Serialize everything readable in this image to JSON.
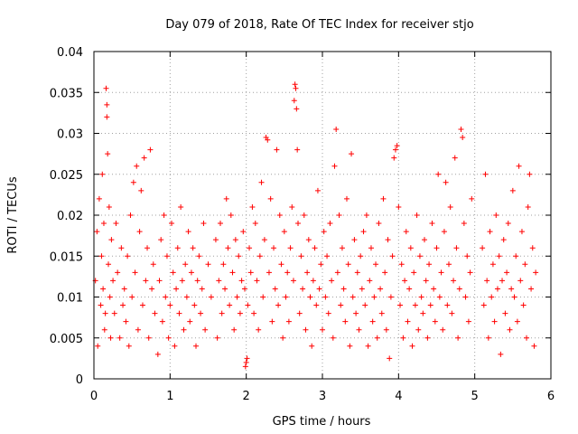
{
  "chart_data": {
    "type": "scatter",
    "title": "Day 079 of 2018, Rate Of TEC Index for receiver stjo",
    "xlabel": "GPS time / hours",
    "ylabel": "ROTI / TECUs",
    "xlim": [
      0,
      6
    ],
    "ylim": [
      0,
      0.04
    ],
    "x_ticks": [
      0,
      1,
      2,
      3,
      4,
      5,
      6
    ],
    "x_tick_labels": [
      "0",
      "1",
      "2",
      "3",
      "4",
      "5",
      "6"
    ],
    "y_ticks": [
      0,
      0.005,
      0.01,
      0.015,
      0.02,
      0.025,
      0.03,
      0.035,
      0.04
    ],
    "y_tick_labels": [
      "0",
      "0.005",
      "0.01",
      "0.015",
      "0.02",
      "0.025",
      "0.03",
      "0.035",
      "0.04"
    ],
    "grid": true,
    "marker": "+",
    "marker_color": "#ff0000",
    "series": [
      {
        "name": "ROTI",
        "points": [
          [
            0.02,
            0.012
          ],
          [
            0.04,
            0.018
          ],
          [
            0.05,
            0.004
          ],
          [
            0.07,
            0.022
          ],
          [
            0.09,
            0.009
          ],
          [
            0.1,
            0.015
          ],
          [
            0.11,
            0.025
          ],
          [
            0.12,
            0.011
          ],
          [
            0.13,
            0.019
          ],
          [
            0.14,
            0.006
          ],
          [
            0.15,
            0.008
          ],
          [
            0.16,
            0.0355
          ],
          [
            0.17,
            0.0335
          ],
          [
            0.17,
            0.032
          ],
          [
            0.18,
            0.0275
          ],
          [
            0.19,
            0.014
          ],
          [
            0.2,
            0.021
          ],
          [
            0.21,
            0.01
          ],
          [
            0.22,
            0.005
          ],
          [
            0.23,
            0.017
          ],
          [
            0.25,
            0.012
          ],
          [
            0.27,
            0.008
          ],
          [
            0.29,
            0.019
          ],
          [
            0.31,
            0.013
          ],
          [
            0.34,
            0.005
          ],
          [
            0.36,
            0.016
          ],
          [
            0.38,
            0.009
          ],
          [
            0.4,
            0.011
          ],
          [
            0.42,
            0.007
          ],
          [
            0.44,
            0.015
          ],
          [
            0.46,
            0.004
          ],
          [
            0.48,
            0.02
          ],
          [
            0.5,
            0.01
          ],
          [
            0.52,
            0.024
          ],
          [
            0.54,
            0.013
          ],
          [
            0.56,
            0.026
          ],
          [
            0.58,
            0.006
          ],
          [
            0.6,
            0.018
          ],
          [
            0.62,
            0.023
          ],
          [
            0.64,
            0.009
          ],
          [
            0.66,
            0.027
          ],
          [
            0.68,
            0.012
          ],
          [
            0.7,
            0.016
          ],
          [
            0.72,
            0.005
          ],
          [
            0.74,
            0.028
          ],
          [
            0.76,
            0.011
          ],
          [
            0.78,
            0.014
          ],
          [
            0.8,
            0.008
          ],
          [
            0.84,
            0.003
          ],
          [
            0.86,
            0.012
          ],
          [
            0.88,
            0.017
          ],
          [
            0.9,
            0.007
          ],
          [
            0.92,
            0.02
          ],
          [
            0.94,
            0.01
          ],
          [
            0.96,
            0.015
          ],
          [
            0.98,
            0.005
          ],
          [
            1.0,
            0.009
          ],
          [
            1.02,
            0.019
          ],
          [
            1.04,
            0.013
          ],
          [
            1.06,
            0.004
          ],
          [
            1.08,
            0.011
          ],
          [
            1.1,
            0.016
          ],
          [
            1.12,
            0.008
          ],
          [
            1.14,
            0.021
          ],
          [
            1.16,
            0.012
          ],
          [
            1.18,
            0.006
          ],
          [
            1.2,
            0.014
          ],
          [
            1.22,
            0.01
          ],
          [
            1.24,
            0.018
          ],
          [
            1.26,
            0.007
          ],
          [
            1.28,
            0.013
          ],
          [
            1.3,
            0.016
          ],
          [
            1.32,
            0.009
          ],
          [
            1.34,
            0.004
          ],
          [
            1.36,
            0.012
          ],
          [
            1.38,
            0.015
          ],
          [
            1.4,
            0.008
          ],
          [
            1.42,
            0.011
          ],
          [
            1.44,
            0.019
          ],
          [
            1.46,
            0.006
          ],
          [
            1.5,
            0.014
          ],
          [
            1.54,
            0.01
          ],
          [
            1.6,
            0.017
          ],
          [
            1.62,
            0.005
          ],
          [
            1.64,
            0.012
          ],
          [
            1.66,
            0.019
          ],
          [
            1.68,
            0.008
          ],
          [
            1.7,
            0.014
          ],
          [
            1.72,
            0.011
          ],
          [
            1.74,
            0.022
          ],
          [
            1.76,
            0.016
          ],
          [
            1.78,
            0.009
          ],
          [
            1.8,
            0.02
          ],
          [
            1.82,
            0.013
          ],
          [
            1.84,
            0.006
          ],
          [
            1.86,
            0.017
          ],
          [
            1.88,
            0.01
          ],
          [
            1.9,
            0.015
          ],
          [
            1.92,
            0.008
          ],
          [
            1.94,
            0.012
          ],
          [
            1.96,
            0.018
          ],
          [
            1.98,
            0.011
          ],
          [
            1.99,
            0.0015
          ],
          [
            2.0,
            0.002
          ],
          [
            2.01,
            0.0025
          ],
          [
            2.02,
            0.009
          ],
          [
            2.04,
            0.016
          ],
          [
            2.06,
            0.013
          ],
          [
            2.08,
            0.021
          ],
          [
            2.1,
            0.008
          ],
          [
            2.12,
            0.019
          ],
          [
            2.14,
            0.012
          ],
          [
            2.16,
            0.006
          ],
          [
            2.18,
            0.015
          ],
          [
            2.2,
            0.024
          ],
          [
            2.22,
            0.01
          ],
          [
            2.24,
            0.017
          ],
          [
            2.26,
            0.0295
          ],
          [
            2.28,
            0.0292
          ],
          [
            2.3,
            0.013
          ],
          [
            2.32,
            0.022
          ],
          [
            2.34,
            0.007
          ],
          [
            2.36,
            0.016
          ],
          [
            2.38,
            0.011
          ],
          [
            2.4,
            0.028
          ],
          [
            2.42,
            0.009
          ],
          [
            2.44,
            0.02
          ],
          [
            2.46,
            0.014
          ],
          [
            2.48,
            0.005
          ],
          [
            2.5,
            0.018
          ],
          [
            2.52,
            0.01
          ],
          [
            2.54,
            0.013
          ],
          [
            2.56,
            0.007
          ],
          [
            2.58,
            0.016
          ],
          [
            2.6,
            0.021
          ],
          [
            2.62,
            0.012
          ],
          [
            2.63,
            0.034
          ],
          [
            2.64,
            0.036
          ],
          [
            2.65,
            0.0355
          ],
          [
            2.66,
            0.033
          ],
          [
            2.67,
            0.028
          ],
          [
            2.68,
            0.019
          ],
          [
            2.7,
            0.008
          ],
          [
            2.72,
            0.015
          ],
          [
            2.74,
            0.011
          ],
          [
            2.76,
            0.02
          ],
          [
            2.78,
            0.006
          ],
          [
            2.8,
            0.013
          ],
          [
            2.82,
            0.017
          ],
          [
            2.84,
            0.01
          ],
          [
            2.86,
            0.004
          ],
          [
            2.88,
            0.012
          ],
          [
            2.9,
            0.016
          ],
          [
            2.92,
            0.009
          ],
          [
            2.94,
            0.023
          ],
          [
            2.96,
            0.011
          ],
          [
            2.98,
            0.014
          ],
          [
            3.0,
            0.006
          ],
          [
            3.02,
            0.018
          ],
          [
            3.04,
            0.01
          ],
          [
            3.06,
            0.015
          ],
          [
            3.08,
            0.008
          ],
          [
            3.1,
            0.019
          ],
          [
            3.12,
            0.012
          ],
          [
            3.14,
            0.005
          ],
          [
            3.16,
            0.026
          ],
          [
            3.18,
            0.0305
          ],
          [
            3.2,
            0.013
          ],
          [
            3.22,
            0.02
          ],
          [
            3.24,
            0.009
          ],
          [
            3.26,
            0.016
          ],
          [
            3.28,
            0.011
          ],
          [
            3.3,
            0.007
          ],
          [
            3.32,
            0.022
          ],
          [
            3.34,
            0.014
          ],
          [
            3.36,
            0.004
          ],
          [
            3.38,
            0.0275
          ],
          [
            3.4,
            0.01
          ],
          [
            3.42,
            0.017
          ],
          [
            3.44,
            0.008
          ],
          [
            3.46,
            0.013
          ],
          [
            3.48,
            0.006
          ],
          [
            3.5,
            0.015
          ],
          [
            3.52,
            0.011
          ],
          [
            3.54,
            0.018
          ],
          [
            3.56,
            0.009
          ],
          [
            3.58,
            0.02
          ],
          [
            3.6,
            0.004
          ],
          [
            3.62,
            0.012
          ],
          [
            3.64,
            0.016
          ],
          [
            3.66,
            0.007
          ],
          [
            3.68,
            0.01
          ],
          [
            3.7,
            0.014
          ],
          [
            3.72,
            0.005
          ],
          [
            3.74,
            0.019
          ],
          [
            3.76,
            0.011
          ],
          [
            3.78,
            0.008
          ],
          [
            3.8,
            0.022
          ],
          [
            3.82,
            0.013
          ],
          [
            3.84,
            0.006
          ],
          [
            3.86,
            0.017
          ],
          [
            3.88,
            0.0025
          ],
          [
            3.9,
            0.01
          ],
          [
            3.92,
            0.015
          ],
          [
            3.94,
            0.027
          ],
          [
            3.96,
            0.028
          ],
          [
            3.98,
            0.0285
          ],
          [
            4.0,
            0.021
          ],
          [
            4.02,
            0.009
          ],
          [
            4.04,
            0.014
          ],
          [
            4.06,
            0.005
          ],
          [
            4.08,
            0.012
          ],
          [
            4.1,
            0.018
          ],
          [
            4.12,
            0.007
          ],
          [
            4.14,
            0.011
          ],
          [
            4.16,
            0.016
          ],
          [
            4.18,
            0.004
          ],
          [
            4.2,
            0.013
          ],
          [
            4.22,
            0.009
          ],
          [
            4.24,
            0.02
          ],
          [
            4.26,
            0.006
          ],
          [
            4.28,
            0.015
          ],
          [
            4.3,
            0.01
          ],
          [
            4.32,
            0.008
          ],
          [
            4.34,
            0.017
          ],
          [
            4.36,
            0.012
          ],
          [
            4.38,
            0.005
          ],
          [
            4.4,
            0.014
          ],
          [
            4.42,
            0.009
          ],
          [
            4.44,
            0.019
          ],
          [
            4.46,
            0.011
          ],
          [
            4.48,
            0.007
          ],
          [
            4.5,
            0.016
          ],
          [
            4.52,
            0.025
          ],
          [
            4.54,
            0.01
          ],
          [
            4.56,
            0.013
          ],
          [
            4.58,
            0.006
          ],
          [
            4.6,
            0.018
          ],
          [
            4.62,
            0.024
          ],
          [
            4.64,
            0.009
          ],
          [
            4.66,
            0.014
          ],
          [
            4.68,
            0.021
          ],
          [
            4.7,
            0.008
          ],
          [
            4.72,
            0.012
          ],
          [
            4.74,
            0.027
          ],
          [
            4.76,
            0.016
          ],
          [
            4.78,
            0.005
          ],
          [
            4.8,
            0.011
          ],
          [
            4.82,
            0.0305
          ],
          [
            4.84,
            0.0295
          ],
          [
            4.86,
            0.019
          ],
          [
            4.88,
            0.01
          ],
          [
            4.9,
            0.015
          ],
          [
            4.92,
            0.007
          ],
          [
            4.94,
            0.013
          ],
          [
            4.96,
            0.022
          ],
          [
            5.1,
            0.016
          ],
          [
            5.12,
            0.009
          ],
          [
            5.14,
            0.025
          ],
          [
            5.16,
            0.012
          ],
          [
            5.18,
            0.005
          ],
          [
            5.2,
            0.018
          ],
          [
            5.22,
            0.01
          ],
          [
            5.24,
            0.014
          ],
          [
            5.26,
            0.007
          ],
          [
            5.28,
            0.02
          ],
          [
            5.3,
            0.011
          ],
          [
            5.32,
            0.015
          ],
          [
            5.34,
            0.003
          ],
          [
            5.36,
            0.012
          ],
          [
            5.38,
            0.017
          ],
          [
            5.4,
            0.008
          ],
          [
            5.42,
            0.013
          ],
          [
            5.44,
            0.019
          ],
          [
            5.46,
            0.006
          ],
          [
            5.48,
            0.011
          ],
          [
            5.5,
            0.023
          ],
          [
            5.52,
            0.01
          ],
          [
            5.54,
            0.015
          ],
          [
            5.56,
            0.007
          ],
          [
            5.58,
            0.026
          ],
          [
            5.6,
            0.012
          ],
          [
            5.62,
            0.018
          ],
          [
            5.64,
            0.009
          ],
          [
            5.66,
            0.014
          ],
          [
            5.68,
            0.005
          ],
          [
            5.7,
            0.021
          ],
          [
            5.72,
            0.025
          ],
          [
            5.74,
            0.011
          ],
          [
            5.76,
            0.016
          ],
          [
            5.78,
            0.004
          ],
          [
            5.8,
            0.013
          ]
        ]
      }
    ]
  }
}
